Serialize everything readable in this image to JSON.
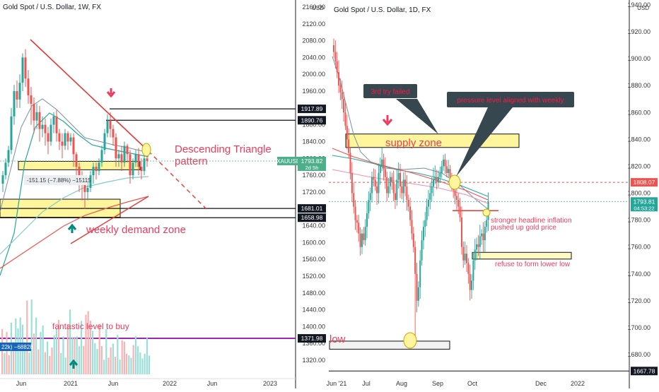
{
  "colors": {
    "up": "#26a69a",
    "down": "#ef5350",
    "trend": "#e53935",
    "zone_fill": "#fff59d",
    "zone_edge": "#111111",
    "purple": "#9c27b0",
    "note_box": "#37474f",
    "note_text": "#ff1744",
    "annot_red": "#ef3b5c",
    "annot_teal": "#00897b"
  },
  "chart_data": [
    {
      "type": "candlestick",
      "title": "Gold Spot / U.S. Dollar, 1W, FX",
      "price_axis": {
        "unit_label": "USD",
        "ticks": [
          "2160.00",
          "2120.00",
          "2080.00",
          "2040.00",
          "2000.00",
          "1960.00",
          "1920.00",
          "1880.00",
          "1840.00",
          "1800.00",
          "1760.00",
          "1720.00",
          "1680.00",
          "1640.00",
          "1600.00",
          "1560.00",
          "1520.00",
          "1480.00",
          "1440.00",
          "1400.00",
          "1360.00",
          "1320.00"
        ],
        "ylim": [
          1300,
          2170
        ]
      },
      "time_axis": {
        "ticks": [
          "Jun",
          "2021",
          "Jun",
          "2022",
          "Jun",
          "2023"
        ]
      },
      "price_labels": [
        {
          "text": "1917.89",
          "value": 1917.89,
          "style": "dark"
        },
        {
          "text": "1890.76",
          "value": 1890.76,
          "style": "dark"
        },
        {
          "text": "1681.01",
          "value": 1681.01,
          "style": "dark"
        },
        {
          "text": "1658.98",
          "value": 1658.98,
          "style": "dark"
        },
        {
          "text": "1371.98",
          "value": 1371.98,
          "style": "dark"
        }
      ],
      "symbol_label": {
        "symbol": "XAUUSD",
        "price": "1793.82",
        "countdown": "2d 5h",
        "value": 1793.82
      },
      "levels": [
        {
          "name": "1917.89",
          "value": 1917.89
        },
        {
          "name": "1890.76",
          "value": 1890.76
        },
        {
          "name": "1681.01",
          "value": 1681.01
        },
        {
          "name": "1658.98",
          "value": 1658.98
        },
        {
          "name": "1371.98",
          "value": 1371.98
        }
      ],
      "measure_label": "-151.15 (−7.88%) −15115",
      "volume_label": "22k) −68828",
      "annotations": {
        "pattern": [
          "Descending Triangle",
          "pattern"
        ],
        "demand": "weekly demand zone",
        "buy": "fantastic level to buy"
      }
    },
    {
      "type": "candlestick",
      "title": "Gold Spot / U.S. Dollar, 1D, FX",
      "price_axis": {
        "unit_label": "USD",
        "ticks": [
          "1940.00",
          "1920.00",
          "1900.00",
          "1880.00",
          "1860.00",
          "1840.00",
          "1820.00",
          "1800.00",
          "1780.00",
          "1760.00",
          "1740.00",
          "1720.00",
          "1700.00",
          "1680.00"
        ],
        "ylim": [
          1660,
          1945
        ]
      },
      "time_axis": {
        "ticks": [
          "Jun '21",
          "Jul",
          "Aug",
          "Sep",
          "Oct",
          "Dec",
          "2022"
        ]
      },
      "price_labels": [
        {
          "text": "1808.07",
          "value": 1808.07,
          "style": "red"
        },
        {
          "text": "1667.78",
          "value": 1667.78,
          "style": "dark"
        }
      ],
      "symbol_label": {
        "price": "1793.81",
        "countdown": "04:53:22",
        "value": 1793.81
      },
      "annotations": {
        "supply": "supply zone",
        "third_try": "3rd try failed",
        "pressure": "pressure level aligned with weekly",
        "inflation": [
          "stronger headline inflation",
          "pushed up gold price"
        ],
        "refuse": "refuse to form lower low",
        "low": "low"
      }
    }
  ]
}
